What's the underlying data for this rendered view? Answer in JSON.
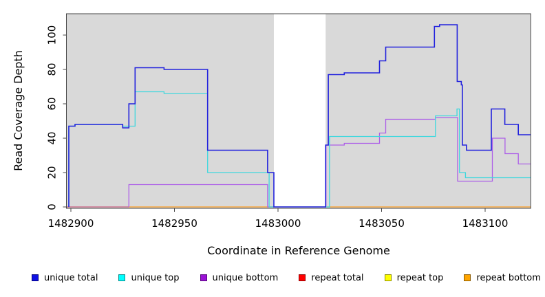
{
  "chart_data": {
    "type": "line",
    "subtype": "step-coverage-plot",
    "title": "",
    "xlabel": "Coordinate in Reference Genome",
    "ylabel": "Read Coverage Depth",
    "x_ticks": [
      1482900,
      1482950,
      1483000,
      1483050,
      1483100
    ],
    "x_tick_labels": [
      "1482900",
      "1482950",
      "1483000",
      "1483050",
      "1483100"
    ],
    "y_ticks": [
      0,
      20,
      40,
      60,
      80,
      100
    ],
    "y_tick_labels": [
      "0",
      "20",
      "40",
      "60",
      "80",
      "100"
    ],
    "xlim": [
      1482898,
      1483122
    ],
    "ylim": [
      0,
      112
    ],
    "grid": false,
    "legend_position": "bottom",
    "plot_background": "#d9d9d9",
    "no_data_region": {
      "x_start": 1482998,
      "x_end": 1483023,
      "color": "#ffffff"
    },
    "series": [
      {
        "name": "repeat bottom",
        "color": "#ff9d1f",
        "points": [
          [
            1482928,
            0
          ],
          [
            1483122,
            0
          ]
        ]
      },
      {
        "name": "repeat total",
        "color": "#cc5f80",
        "points": [
          [
            1482898,
            0
          ],
          [
            1482928,
            0
          ]
        ]
      },
      {
        "name": "unique bottom",
        "color": "#ad5fe8",
        "points": [
          [
            1482928,
            0
          ],
          [
            1482928,
            13
          ],
          [
            1482995,
            13
          ],
          [
            1482995,
            0
          ],
          [
            1483023.2,
            0
          ],
          [
            1483023.2,
            36
          ],
          [
            1483032,
            36
          ],
          [
            1483032,
            37
          ],
          [
            1483049,
            37
          ],
          [
            1483049,
            43
          ],
          [
            1483052,
            43
          ],
          [
            1483052,
            51
          ],
          [
            1483076,
            51
          ],
          [
            1483076,
            52
          ],
          [
            1483086.7,
            52
          ],
          [
            1483086.7,
            15
          ],
          [
            1483103.5,
            15
          ],
          [
            1483103.5,
            40
          ],
          [
            1483109.6,
            40
          ],
          [
            1483109.6,
            31
          ],
          [
            1483116,
            31
          ],
          [
            1483116,
            25
          ],
          [
            1483122,
            25
          ]
        ]
      },
      {
        "name": "unique top",
        "color": "#3ed8dd",
        "points": [
          [
            1482899,
            0
          ],
          [
            1482899,
            47
          ],
          [
            1482902,
            47
          ],
          [
            1482902,
            48
          ],
          [
            1482925,
            48
          ],
          [
            1482925,
            47
          ],
          [
            1482931,
            47
          ],
          [
            1482931,
            67
          ],
          [
            1482945,
            67
          ],
          [
            1482945,
            66
          ],
          [
            1482966,
            66
          ],
          [
            1482966,
            20
          ],
          [
            1482995.7,
            20
          ],
          [
            1482995.7,
            0
          ],
          [
            1483024.9,
            0
          ],
          [
            1483024.9,
            41
          ],
          [
            1483076,
            41
          ],
          [
            1483076,
            53
          ],
          [
            1483086.4,
            53
          ],
          [
            1483086.4,
            57
          ],
          [
            1483087.6,
            57
          ],
          [
            1483087.6,
            20
          ],
          [
            1483090.5,
            20
          ],
          [
            1483090.5,
            17
          ],
          [
            1483122,
            17
          ]
        ]
      },
      {
        "name": "unique total",
        "color": "#2222dd",
        "points": [
          [
            1482899,
            0
          ],
          [
            1482899,
            47
          ],
          [
            1482902,
            47
          ],
          [
            1482902,
            48
          ],
          [
            1482925,
            48
          ],
          [
            1482925,
            46
          ],
          [
            1482928,
            46
          ],
          [
            1482928,
            60
          ],
          [
            1482931,
            60
          ],
          [
            1482931,
            81
          ],
          [
            1482945,
            81
          ],
          [
            1482945,
            80
          ],
          [
            1482966,
            80
          ],
          [
            1482966,
            33
          ],
          [
            1482995,
            33
          ],
          [
            1482995,
            20
          ],
          [
            1482998,
            20
          ],
          [
            1482998,
            0
          ],
          [
            1483023,
            0
          ],
          [
            1483023,
            36
          ],
          [
            1483024.3,
            36
          ],
          [
            1483024.3,
            77
          ],
          [
            1483032,
            77
          ],
          [
            1483032,
            78
          ],
          [
            1483049,
            78
          ],
          [
            1483049,
            85
          ],
          [
            1483052,
            85
          ],
          [
            1483052,
            93
          ],
          [
            1483075.5,
            93
          ],
          [
            1483075.5,
            105
          ],
          [
            1483078,
            105
          ],
          [
            1483078,
            106
          ],
          [
            1483086.5,
            106
          ],
          [
            1483086.5,
            73
          ],
          [
            1483088.5,
            73
          ],
          [
            1483088.5,
            71
          ],
          [
            1483089,
            71
          ],
          [
            1483089,
            36
          ],
          [
            1483091,
            36
          ],
          [
            1483091,
            33
          ],
          [
            1483103,
            33
          ],
          [
            1483103,
            57
          ],
          [
            1483109.5,
            57
          ],
          [
            1483109.5,
            48
          ],
          [
            1483116,
            48
          ],
          [
            1483116,
            42
          ],
          [
            1483122,
            42
          ]
        ]
      }
    ],
    "legend": [
      {
        "label": "unique total",
        "fill": "#0f10e3",
        "border": "#00007a"
      },
      {
        "label": "unique top",
        "fill": "#00ffff",
        "border": "#0a8a8a"
      },
      {
        "label": "unique bottom",
        "fill": "#9b12d6",
        "border": "#58077e"
      },
      {
        "label": "repeat total",
        "fill": "#ff0000",
        "border": "#8e0000"
      },
      {
        "label": "repeat top",
        "fill": "#ffff00",
        "border": "#8a8a00"
      },
      {
        "label": "repeat bottom",
        "fill": "#ffa500",
        "border": "#8a5a00"
      }
    ],
    "axis_color": "#454545"
  }
}
